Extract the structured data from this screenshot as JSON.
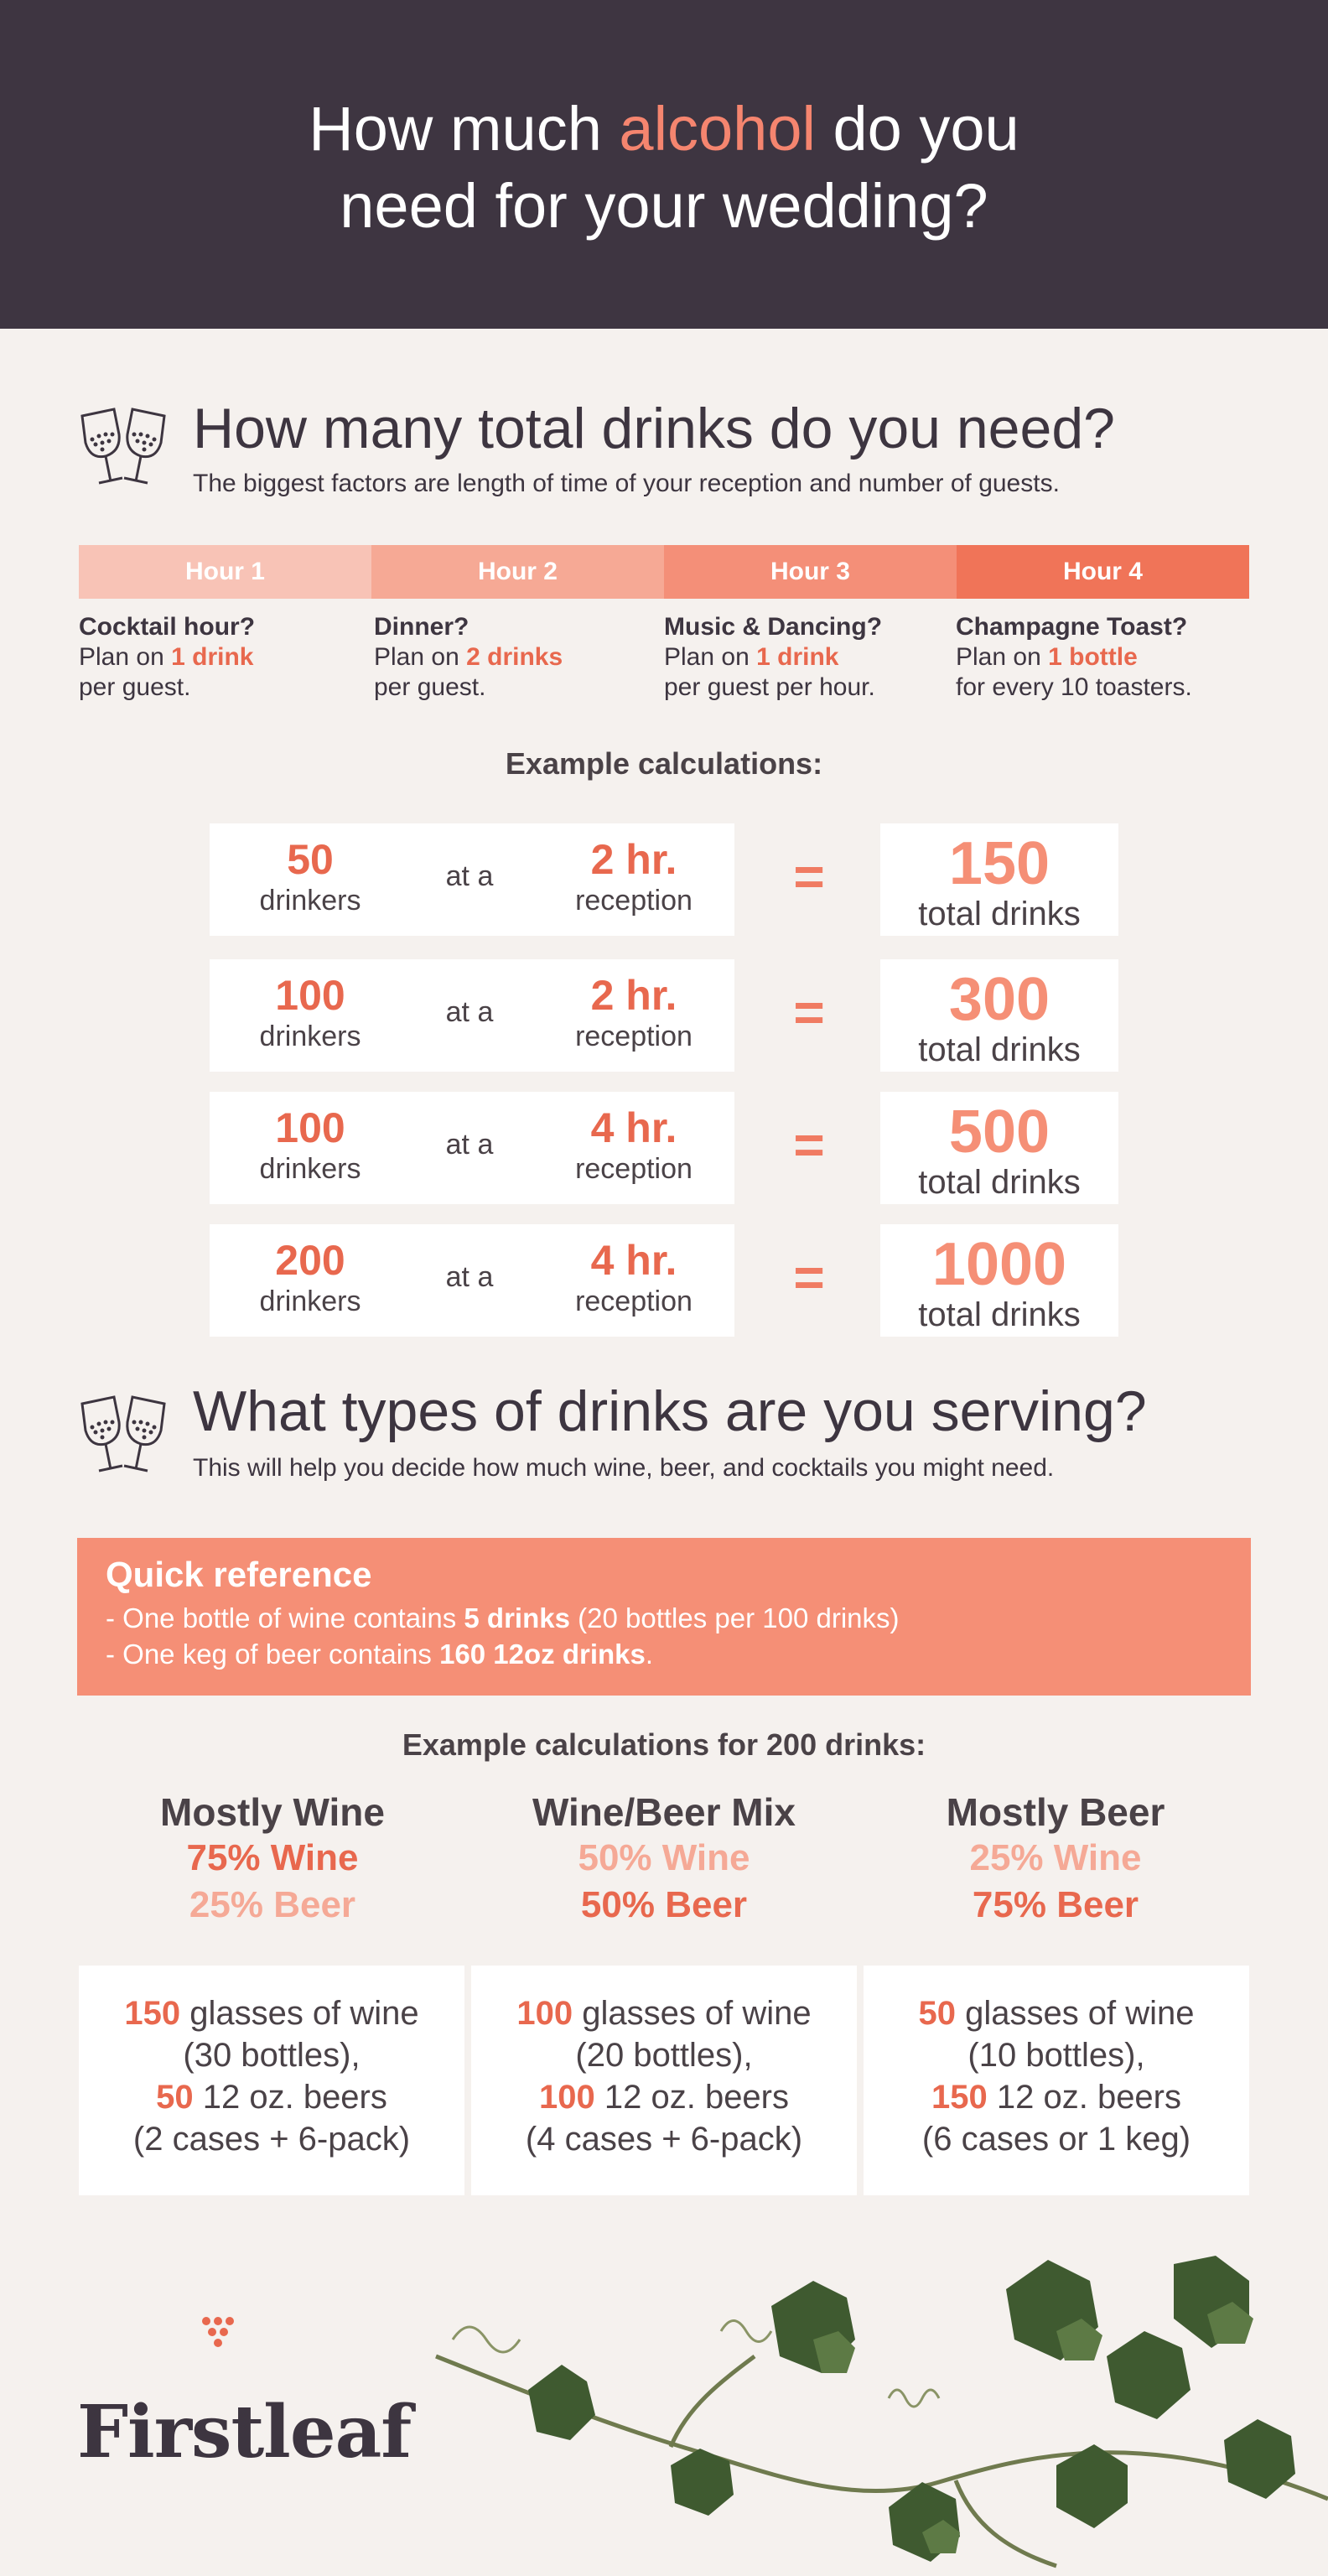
{
  "header": {
    "title_pre": "How much",
    "title_accent": "alcohol",
    "title_post": "do you",
    "title_line2": "need for your wedding?"
  },
  "section1": {
    "icon": "wine-glasses-icon",
    "title": "How many total drinks do you need?",
    "subtitle": "The biggest factors are length of time of your reception and number of guests."
  },
  "hours": [
    {
      "label": "Hour 1",
      "color": "#f8c3b6",
      "question": "Cocktail hour?",
      "line_pre": "Plan on ",
      "highlight": "1 drink",
      "line_post": "",
      "line2": "per guest."
    },
    {
      "label": "Hour 2",
      "color": "#f6a995",
      "question": "Dinner?",
      "line_pre": "Plan on ",
      "highlight": "2 drinks",
      "line_post": "",
      "line2": "per guest."
    },
    {
      "label": "Hour 3",
      "color": "#f48f78",
      "question": "Music & Dancing?",
      "line_pre": "Plan on ",
      "highlight": "1 drink",
      "line_post": "",
      "line2": "per guest per hour."
    },
    {
      "label": "Hour 4",
      "color": "#f07458",
      "question": "Champagne Toast?",
      "line_pre": "Plan on ",
      "highlight": "1 bottle",
      "line_post": "",
      "line2": "for every 10 toasters."
    }
  ],
  "calc_heading": "Example calculations:",
  "calculations": [
    {
      "drinkers": "50",
      "drinkers_label": "drinkers",
      "at": "at a",
      "hours": "2 hr.",
      "hours_label": "reception",
      "eq": "=",
      "total": "150",
      "total_label": "total drinks"
    },
    {
      "drinkers": "100",
      "drinkers_label": "drinkers",
      "at": "at a",
      "hours": "2 hr.",
      "hours_label": "reception",
      "eq": "=",
      "total": "300",
      "total_label": "total drinks"
    },
    {
      "drinkers": "100",
      "drinkers_label": "drinkers",
      "at": "at a",
      "hours": "4 hr.",
      "hours_label": "reception",
      "eq": "=",
      "total": "500",
      "total_label": "total drinks"
    },
    {
      "drinkers": "200",
      "drinkers_label": "drinkers",
      "at": "at a",
      "hours": "4 hr.",
      "hours_label": "reception",
      "eq": "=",
      "total": "1000",
      "total_label": "total drinks"
    }
  ],
  "section2": {
    "icon": "wine-glasses-icon",
    "title": "What types of drinks are you serving?",
    "subtitle": "This will help you decide how much wine, beer, and cocktails you might need."
  },
  "quickref": {
    "title": "Quick reference",
    "line1_pre": "- One bottle of wine contains ",
    "line1_bold": "5 drinks",
    "line1_post": " (20 bottles per 100 drinks)",
    "line2_pre": "- One keg of beer contains ",
    "line2_bold": "160 12oz drinks",
    "line2_post": "."
  },
  "mix_heading": "Example calculations for 200 drinks:",
  "mixes": [
    {
      "name": "Mostly Wine",
      "wine": "75% Wine",
      "beer": "25% Beer",
      "wine_glasses": "150",
      "wine_glasses_text": " glasses of wine",
      "bottles": "(30 bottles),",
      "beers": "50",
      "beers_text": " 12 oz. beers",
      "cases": "(2 cases + 6-pack)"
    },
    {
      "name": "Wine/Beer Mix",
      "wine": "50% Wine",
      "beer": "50% Beer",
      "wine_glasses": "100",
      "wine_glasses_text": " glasses of wine",
      "bottles": "(20 bottles),",
      "beers": "100",
      "beers_text": " 12 oz. beers",
      "cases": "(4 cases + 6-pack)"
    },
    {
      "name": "Mostly Beer",
      "wine": "25% Wine",
      "beer": "75% Beer",
      "wine_glasses": "50",
      "wine_glasses_text": " glasses of wine",
      "bottles": "(10 bottles),",
      "beers": "150",
      "beers_text": " 12 oz. beers",
      "cases": "(6 cases or 1 keg)"
    }
  ],
  "brand": {
    "name": "Firstleaf",
    "mark_icon": "grape-cluster-icon",
    "decoration_icon": "grape-vine-icon"
  }
}
